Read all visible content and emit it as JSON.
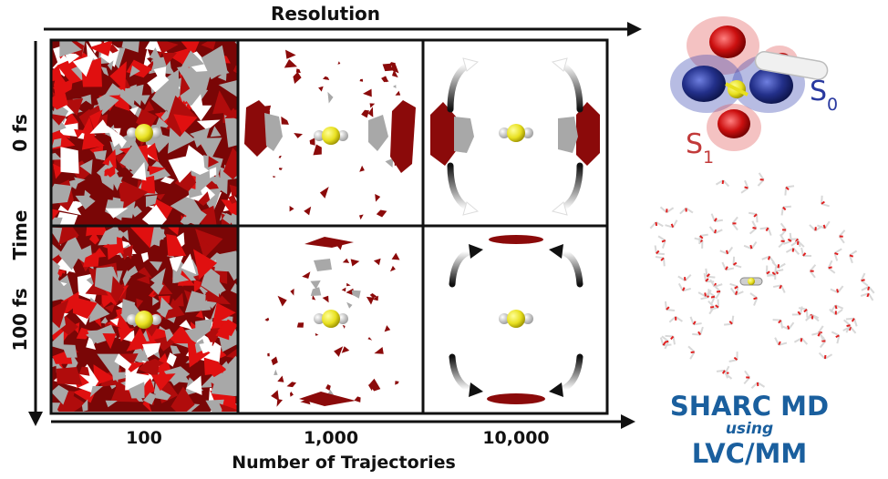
{
  "axes": {
    "resolution_label": "Resolution",
    "time_label": "Time",
    "x_label": "Number of Trajectories",
    "columns": [
      "100",
      "1,000",
      "10,000"
    ],
    "rows": [
      "0 fs",
      "100 fs"
    ]
  },
  "orbital": {
    "s0_letter": "S",
    "s0_sub": "0",
    "s1_letter": "S",
    "s1_sub": "1",
    "s0_color": "#2a3aa0",
    "s1_color": "#c23a3a"
  },
  "method": {
    "line1": "SHARC MD",
    "line2": "using",
    "line3": "LVC/MM",
    "color": "#1a5f9e"
  },
  "colors": {
    "density": "#8b0a0a",
    "density_bright": "#e01010",
    "gray": "#a8a8a8",
    "sulfur": "#e8e020",
    "hydrogen": "#e8e8e8"
  }
}
